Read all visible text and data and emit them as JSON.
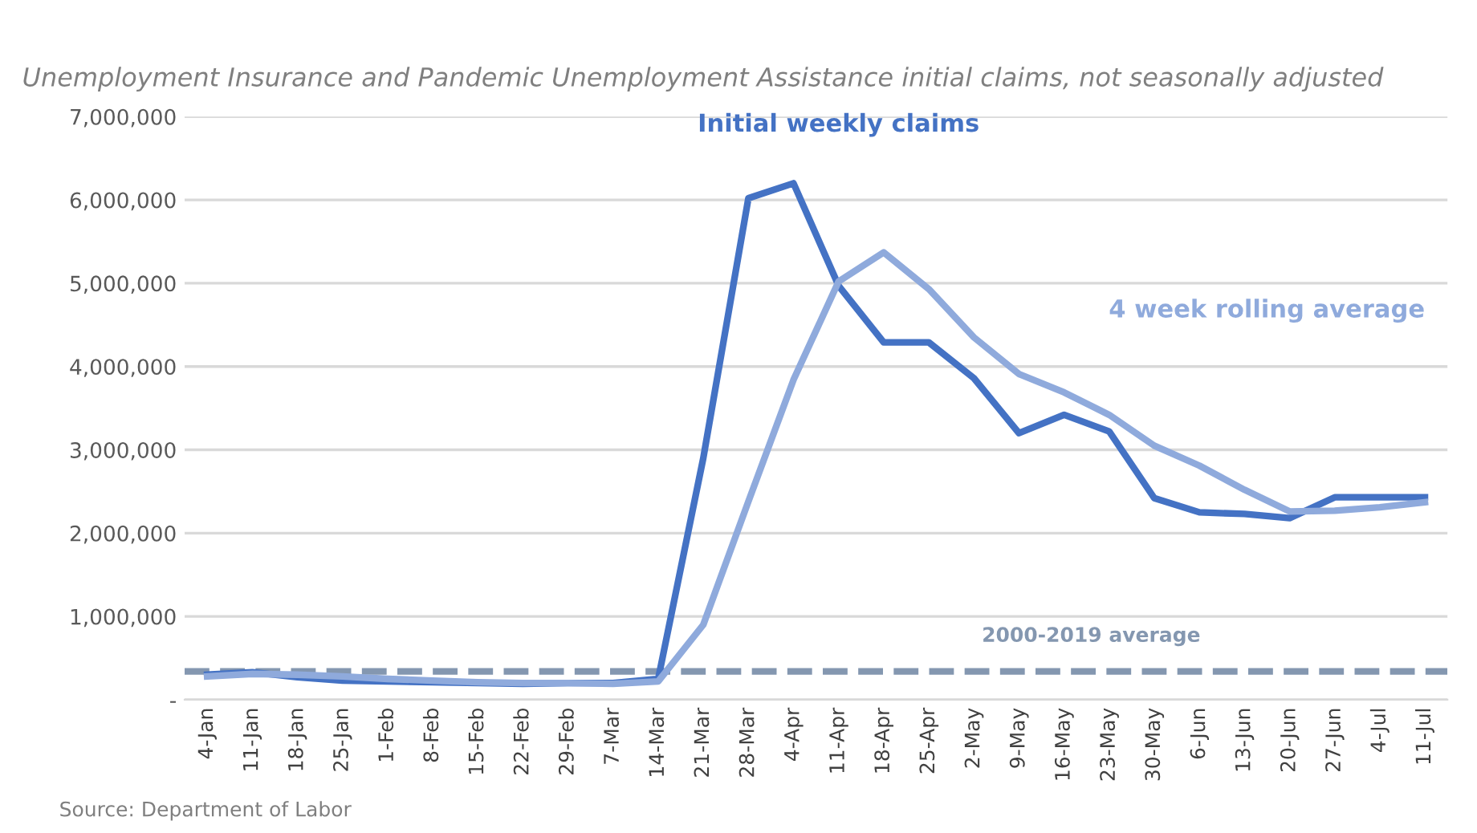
{
  "chart_data": {
    "type": "line",
    "title": "Unemployment Insurance and Pandemic Unemployment Assistance initial claims, not seasonally adjusted",
    "categories": [
      "4-Jan",
      "11-Jan",
      "18-Jan",
      "25-Jan",
      "1-Feb",
      "8-Feb",
      "15-Feb",
      "22-Feb",
      "29-Feb",
      "7-Mar",
      "14-Mar",
      "21-Mar",
      "28-Mar",
      "4-Apr",
      "11-Apr",
      "18-Apr",
      "25-Apr",
      "2-May",
      "9-May",
      "16-May",
      "23-May",
      "30-May",
      "6-Jun",
      "13-Jun",
      "20-Jun",
      "27-Jun",
      "4-Jul",
      "11-Jul"
    ],
    "series": [
      {
        "name": "Initial weekly claims",
        "color": "#4472c4",
        "values": [
          300000,
          330000,
          270000,
          230000,
          220000,
          210000,
          200000,
          190000,
          200000,
          200000,
          250000,
          2900000,
          6020000,
          6200000,
          4970000,
          4290000,
          4290000,
          3860000,
          3200000,
          3420000,
          3220000,
          2420000,
          2250000,
          2230000,
          2180000,
          2430000,
          2430000,
          2430000
        ]
      },
      {
        "name": "4 week rolling average",
        "color": "#8faadc",
        "values": [
          280000,
          310000,
          300000,
          280000,
          250000,
          230000,
          210000,
          200000,
          200000,
          190000,
          220000,
          900000,
          2380000,
          3840000,
          5020000,
          5370000,
          4930000,
          4350000,
          3910000,
          3690000,
          3420000,
          3050000,
          2810000,
          2520000,
          2260000,
          2270000,
          2310000,
          2370000
        ]
      }
    ],
    "ref_lines": [
      {
        "axis": "y",
        "value": 340000,
        "label": "2000-2019 average",
        "color": "#8497b0",
        "line_style": "dashed"
      }
    ],
    "ylim": [
      0,
      7000000
    ],
    "yticks": [
      {
        "value": 0,
        "label": "-"
      },
      {
        "value": 1000000,
        "label": "1,000,000"
      },
      {
        "value": 2000000,
        "label": "2,000,000"
      },
      {
        "value": 3000000,
        "label": "3,000,000"
      },
      {
        "value": 4000000,
        "label": "4,000,000"
      },
      {
        "value": 5000000,
        "label": "5,000,000"
      },
      {
        "value": 6000000,
        "label": "6,000,000"
      },
      {
        "value": 7000000,
        "label": "7,000,000"
      }
    ],
    "grid": "y",
    "legend": false,
    "marker": "none",
    "line_style": "solid",
    "annotations": [
      "Source: Department of Labor"
    ]
  }
}
